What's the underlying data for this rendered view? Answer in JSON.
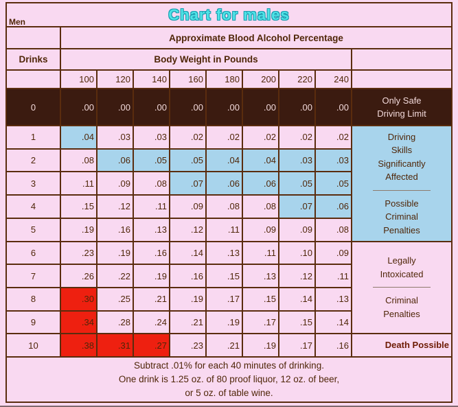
{
  "title": "Chart for males",
  "corner_label": "Men",
  "table": {
    "percentage_header": "Approximate Blood Alcohol Percentage",
    "drinks_header": "Drinks",
    "weight_header": "Body Weight in Pounds",
    "weights": [
      "100",
      "120",
      "140",
      "160",
      "180",
      "200",
      "220",
      "240"
    ],
    "rows": [
      {
        "drinks": "0",
        "values": [
          ".00",
          ".00",
          ".00",
          ".00",
          ".00",
          ".00",
          ".00",
          ".00"
        ],
        "dark": true
      },
      {
        "drinks": "1",
        "values": [
          ".04",
          ".03",
          ".03",
          ".02",
          ".02",
          ".02",
          ".02",
          ".02"
        ],
        "blue": [
          0
        ]
      },
      {
        "drinks": "2",
        "values": [
          ".08",
          ".06",
          ".05",
          ".05",
          ".04",
          ".04",
          ".03",
          ".03"
        ],
        "blue": [
          1,
          2,
          3,
          4,
          5,
          6,
          7
        ]
      },
      {
        "drinks": "3",
        "values": [
          ".11",
          ".09",
          ".08",
          ".07",
          ".06",
          ".06",
          ".05",
          ".05"
        ],
        "blue": [
          3,
          4,
          5,
          6,
          7
        ]
      },
      {
        "drinks": "4",
        "values": [
          ".15",
          ".12",
          ".11",
          ".09",
          ".08",
          ".08",
          ".07",
          ".06"
        ],
        "blue": [
          6,
          7
        ]
      },
      {
        "drinks": "5",
        "values": [
          ".19",
          ".16",
          ".13",
          ".12",
          ".11",
          ".09",
          ".09",
          ".08"
        ]
      },
      {
        "drinks": "6",
        "values": [
          ".23",
          ".19",
          ".16",
          ".14",
          ".13",
          ".11",
          ".10",
          ".09"
        ]
      },
      {
        "drinks": "7",
        "values": [
          ".26",
          ".22",
          ".19",
          ".16",
          ".15",
          ".13",
          ".12",
          ".11"
        ]
      },
      {
        "drinks": "8",
        "values": [
          ".30",
          ".25",
          ".21",
          ".19",
          ".17",
          ".15",
          ".14",
          ".13"
        ],
        "red": [
          0
        ]
      },
      {
        "drinks": "9",
        "values": [
          ".34",
          ".28",
          ".24",
          ".21",
          ".19",
          ".17",
          ".15",
          ".14"
        ],
        "red": [
          0
        ]
      },
      {
        "drinks": "10",
        "values": [
          ".38",
          ".31",
          ".27",
          ".23",
          ".21",
          ".19",
          ".17",
          ".16"
        ],
        "red": [
          0,
          1,
          2
        ]
      }
    ]
  },
  "zones": {
    "safe": {
      "lines": [
        "Only Safe",
        "Driving Limit"
      ]
    },
    "impaired": {
      "lines": [
        "Driving",
        "Skills",
        "Significantly",
        "Affected"
      ]
    },
    "possible": {
      "lines": [
        "Possible",
        "Criminal",
        "Penalties"
      ]
    },
    "legal": {
      "lines": [
        "Legally",
        "Intoxicated"
      ]
    },
    "criminal": {
      "lines": [
        "Criminal",
        "Penalties"
      ]
    },
    "death": {
      "label": "Death Possible"
    }
  },
  "footer": {
    "lines": [
      "Subtract .01% for each 40 minutes of drinking.",
      "One drink is 1.25 oz. of 80 proof liquor, 12 oz. of beer,",
      "or 5 oz. of table wine."
    ]
  },
  "colors": {
    "background_pink": "#f9d9f1",
    "border_brown": "#5a2c0e",
    "highlight_blue": "#a8d4ec",
    "highlight_red": "#ee2010",
    "dark_row": "#3b1b10",
    "dark_row_text": "#f2d9da",
    "title_cyan": "#4fe3e6",
    "title_outline": "#189cb0",
    "text_brown": "#4f2608"
  },
  "chart_data": {
    "type": "table",
    "title": "Chart for males — Approximate Blood Alcohol Percentage",
    "x_header": "Body Weight in Pounds",
    "y_header": "Drinks",
    "categories": [
      100,
      120,
      140,
      160,
      180,
      200,
      220,
      240
    ],
    "drinks": [
      0,
      1,
      2,
      3,
      4,
      5,
      6,
      7,
      8,
      9,
      10
    ],
    "bac_values": [
      [
        0.0,
        0.0,
        0.0,
        0.0,
        0.0,
        0.0,
        0.0,
        0.0
      ],
      [
        0.04,
        0.03,
        0.03,
        0.02,
        0.02,
        0.02,
        0.02,
        0.02
      ],
      [
        0.08,
        0.06,
        0.05,
        0.05,
        0.04,
        0.04,
        0.03,
        0.03
      ],
      [
        0.11,
        0.09,
        0.08,
        0.07,
        0.06,
        0.06,
        0.05,
        0.05
      ],
      [
        0.15,
        0.12,
        0.11,
        0.09,
        0.08,
        0.08,
        0.07,
        0.06
      ],
      [
        0.19,
        0.16,
        0.13,
        0.12,
        0.11,
        0.09,
        0.09,
        0.08
      ],
      [
        0.23,
        0.19,
        0.16,
        0.14,
        0.13,
        0.11,
        0.1,
        0.09
      ],
      [
        0.26,
        0.22,
        0.19,
        0.16,
        0.15,
        0.13,
        0.12,
        0.11
      ],
      [
        0.3,
        0.25,
        0.21,
        0.19,
        0.17,
        0.15,
        0.14,
        0.13
      ],
      [
        0.34,
        0.28,
        0.24,
        0.21,
        0.19,
        0.17,
        0.15,
        0.14
      ],
      [
        0.38,
        0.31,
        0.27,
        0.23,
        0.21,
        0.19,
        0.17,
        0.16
      ]
    ],
    "zone_annotations": [
      "Only Safe Driving Limit",
      "Driving Skills Significantly Affected",
      "Possible Criminal Penalties",
      "Legally Intoxicated",
      "Criminal Penalties",
      "Death Possible"
    ],
    "notes": "Subtract .01% for each 40 minutes of drinking. One drink is 1.25 oz. of 80 proof liquor, 12 oz. of beer, or 5 oz. of table wine."
  }
}
